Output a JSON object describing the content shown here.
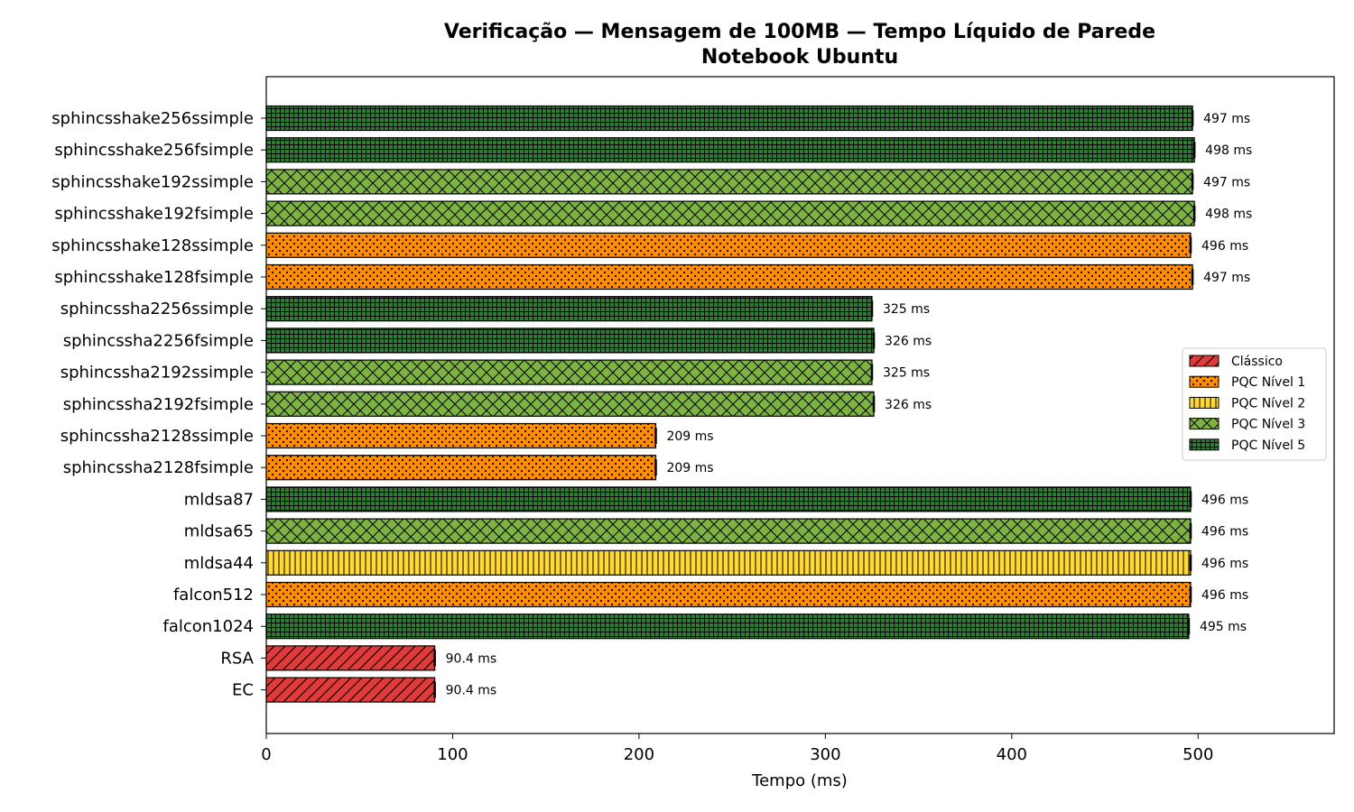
{
  "chart_data": {
    "type": "bar",
    "orientation": "horizontal",
    "title": "Verificação — Mensagem de 100MB — Tempo Líquido de Parede",
    "subtitle": "Notebook Ubuntu",
    "xlabel": "Tempo (ms)",
    "ylabel": "",
    "xlim": [
      0,
      573
    ],
    "xticks": [
      0,
      100,
      200,
      300,
      400,
      500
    ],
    "grid": false,
    "legend_position": "center-right",
    "categories": [
      "sphincsshake256ssimple",
      "sphincsshake256fsimple",
      "sphincsshake192ssimple",
      "sphincsshake192fsimple",
      "sphincsshake128ssimple",
      "sphincsshake128fsimple",
      "sphincssha2256ssimple",
      "sphincssha2256fsimple",
      "sphincssha2192ssimple",
      "sphincssha2192fsimple",
      "sphincssha2128ssimple",
      "sphincssha2128fsimple",
      "mldsa87",
      "mldsa65",
      "mldsa44",
      "falcon512",
      "falcon1024",
      "RSA",
      "EC"
    ],
    "values": [
      497,
      498,
      497,
      498,
      496,
      497,
      325,
      326,
      325,
      326,
      209,
      209,
      496,
      496,
      496,
      496,
      495,
      90.4,
      90.4
    ],
    "value_labels": [
      "497 ms",
      "498 ms",
      "497 ms",
      "498 ms",
      "496 ms",
      "497 ms",
      "325 ms",
      "326 ms",
      "325 ms",
      "326 ms",
      "209 ms",
      "209 ms",
      "496 ms",
      "496 ms",
      "496 ms",
      "496 ms",
      "495 ms",
      "90.4 ms",
      "90.4 ms"
    ],
    "groups": [
      "PQC Nível 5",
      "PQC Nível 5",
      "PQC Nível 3",
      "PQC Nível 3",
      "PQC Nível 1",
      "PQC Nível 1",
      "PQC Nível 5",
      "PQC Nível 5",
      "PQC Nível 3",
      "PQC Nível 3",
      "PQC Nível 1",
      "PQC Nível 1",
      "PQC Nível 5",
      "PQC Nível 3",
      "PQC Nível 2",
      "PQC Nível 1",
      "PQC Nível 5",
      "Clássico",
      "Clássico"
    ],
    "legend": [
      {
        "name": "Clássico",
        "color": "#e03a3a",
        "pattern": "diagonal-hatch"
      },
      {
        "name": "PQC Nível 1",
        "color": "#ff8c00",
        "pattern": "dots"
      },
      {
        "name": "PQC Nível 2",
        "color": "#ffd93a",
        "pattern": "vertical-lines"
      },
      {
        "name": "PQC Nível 3",
        "color": "#7cb342",
        "pattern": "cross-hatch"
      },
      {
        "name": "PQC Nível 5",
        "color": "#2e7d32",
        "pattern": "grid"
      }
    ]
  }
}
